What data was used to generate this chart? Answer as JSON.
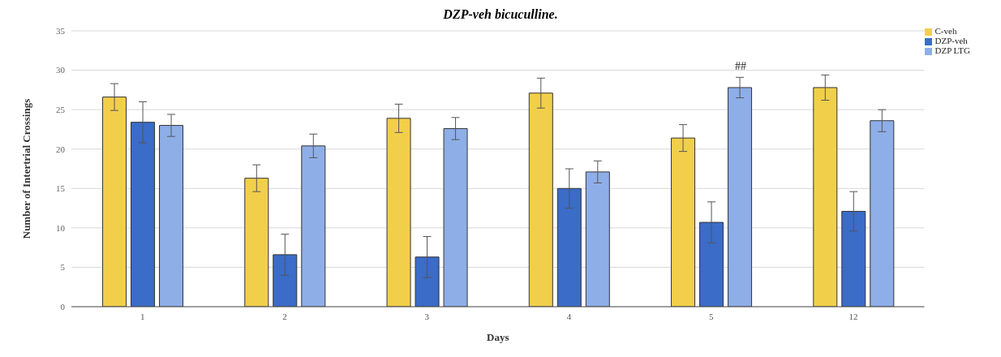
{
  "chart_data": {
    "type": "bar",
    "title": "DZP-veh bicuculline.",
    "xlabel": "Days",
    "ylabel": "Number of  Intertrial Crossings",
    "categories": [
      "1",
      "2",
      "3",
      "4",
      "5",
      "12"
    ],
    "series": [
      {
        "name": "C-veh",
        "color": "#f2cf4a",
        "values": [
          26.6,
          16.3,
          23.9,
          27.1,
          21.4,
          27.8
        ],
        "errors": [
          1.7,
          1.7,
          1.8,
          1.9,
          1.7,
          1.6
        ]
      },
      {
        "name": "DZP-veh",
        "color": "#3a6cc8",
        "values": [
          23.4,
          6.6,
          6.3,
          15.0,
          10.7,
          12.1
        ],
        "errors": [
          2.6,
          2.6,
          2.6,
          2.5,
          2.6,
          2.5
        ]
      },
      {
        "name": "DZP LTG",
        "color": "#8eaee8",
        "values": [
          23.0,
          20.4,
          22.6,
          17.1,
          27.8,
          23.6
        ],
        "errors": [
          1.4,
          1.5,
          1.4,
          1.4,
          1.3,
          1.4
        ]
      }
    ],
    "ylim": [
      0,
      35
    ],
    "yticks": [
      0,
      5,
      10,
      15,
      20,
      25,
      30,
      35
    ],
    "grid": "y",
    "legend": "top right",
    "annotations": [
      "##"
    ]
  }
}
